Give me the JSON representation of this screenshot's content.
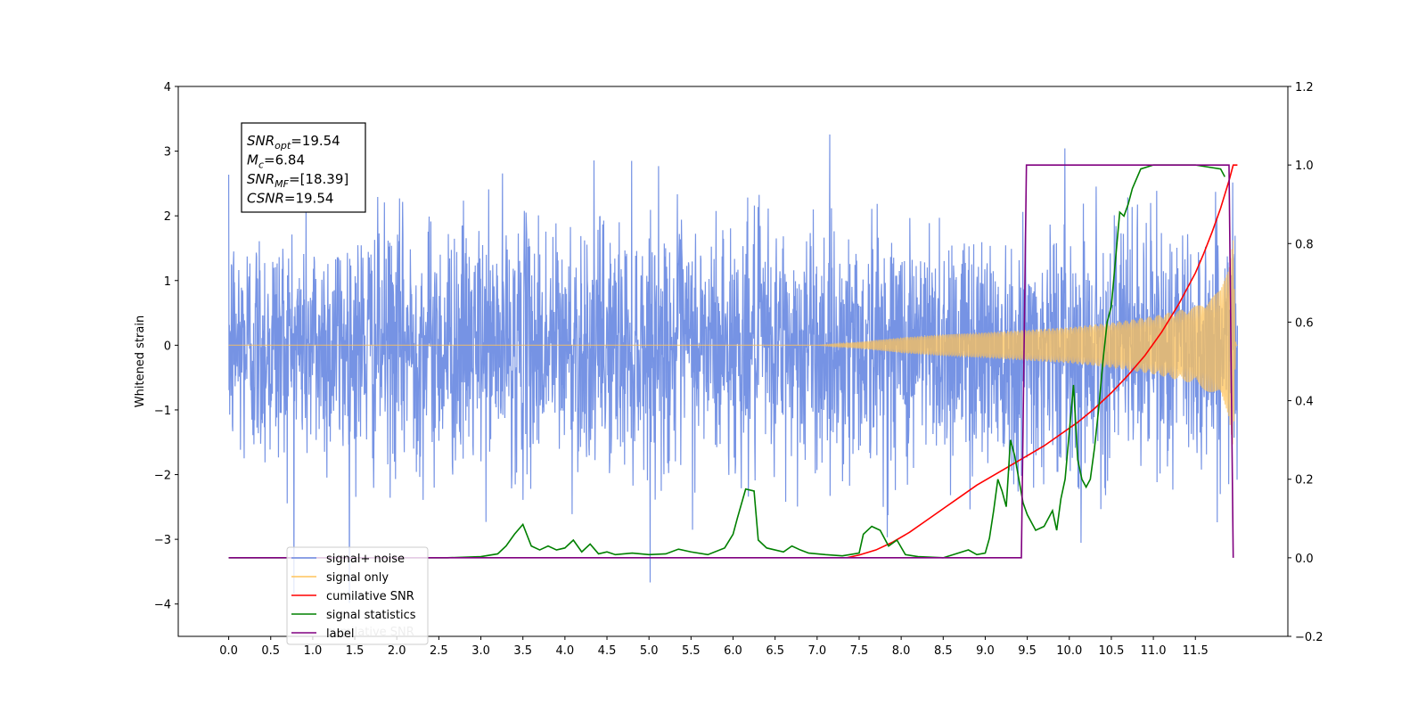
{
  "chart_data": {
    "type": "line",
    "ylabel": "Whitened strain",
    "xlim": [
      -0.6,
      12.6
    ],
    "ylim_left": [
      -4.5,
      4.0
    ],
    "ylim_right": [
      -0.2,
      1.2
    ],
    "x_ticks": [
      0.0,
      0.5,
      1.0,
      1.5,
      2.0,
      2.5,
      3.0,
      3.5,
      4.0,
      4.5,
      5.0,
      5.5,
      6.0,
      6.5,
      7.0,
      7.5,
      8.0,
      8.5,
      9.0,
      9.5,
      10.0,
      10.5,
      11.0,
      11.5
    ],
    "x_tick_labels": [
      "0.0",
      "0.5",
      "1.0",
      "1.5",
      "2.0",
      "2.5",
      "3.0",
      "3.5",
      "4.0",
      "4.5",
      "5.0",
      "5.5",
      "6.0",
      "6.5",
      "7.0",
      "7.5",
      "8.0",
      "8.5",
      "9.0",
      "9.5",
      "10.0",
      "10.5",
      "11.0",
      "11.5"
    ],
    "y_left_ticks": [
      4,
      3,
      2,
      1,
      0,
      -1,
      -2,
      -3,
      -4
    ],
    "y_left_tick_labels": [
      "4",
      "3",
      "2",
      "1",
      "0",
      "−1",
      "−2",
      "−3",
      "−4"
    ],
    "y_right_ticks": [
      1.2,
      1.0,
      0.8,
      0.6,
      0.4,
      0.2,
      0.0,
      -0.2
    ],
    "y_right_tick_labels": [
      "1.2",
      "1.0",
      "0.8",
      "0.6",
      "0.4",
      "0.2",
      "0.0",
      "−0.2"
    ],
    "annotation": {
      "lines": [
        {
          "base": "SNR",
          "sub": "opt",
          "value": "=19.54"
        },
        {
          "base": "M",
          "sub": "c",
          "value": "=6.84"
        },
        {
          "base": "SNR",
          "sub": "MF",
          "value": "=[18.39]"
        },
        {
          "base": "CSNR",
          "sub": "",
          "value": "=19.54"
        }
      ]
    },
    "legend": {
      "placement": "lower-left",
      "ghost_text": "cumilative SNR",
      "entries": [
        {
          "label": "signal+ noise",
          "color": "#6f8de3"
        },
        {
          "label": "signal only",
          "color": "#ffc35a"
        },
        {
          "label": "cumilative SNR",
          "color": "#ff0000"
        },
        {
          "label": "signal statistics",
          "color": "#008000"
        },
        {
          "label": "label",
          "color": "#800080"
        }
      ]
    },
    "series": [
      {
        "id": "signal_noise",
        "axis": "left",
        "color": "#6f8de3",
        "noise_sigma": 0.95,
        "x_range": [
          0.0,
          12.0
        ],
        "samples": 3000
      },
      {
        "id": "signal_only",
        "axis": "left",
        "color": "#ffc35a",
        "envelope": [
          [
            0.0,
            0.0
          ],
          [
            7.0,
            0.0
          ],
          [
            7.5,
            0.05
          ],
          [
            8.0,
            0.12
          ],
          [
            8.5,
            0.17
          ],
          [
            9.0,
            0.2
          ],
          [
            9.5,
            0.24
          ],
          [
            10.0,
            0.28
          ],
          [
            10.5,
            0.35
          ],
          [
            11.0,
            0.45
          ],
          [
            11.5,
            0.6
          ],
          [
            11.8,
            0.85
          ],
          [
            11.9,
            1.2
          ],
          [
            11.95,
            1.7
          ],
          [
            11.98,
            0.0
          ],
          [
            12.0,
            0.0
          ]
        ]
      },
      {
        "id": "cumulative_snr",
        "axis": "right",
        "color": "#ff0000",
        "x": [
          7.35,
          7.5,
          7.7,
          7.9,
          8.1,
          8.3,
          8.5,
          8.7,
          8.9,
          9.1,
          9.3,
          9.5,
          9.7,
          9.9,
          10.1,
          10.3,
          10.5,
          10.7,
          10.9,
          11.1,
          11.3,
          11.5,
          11.6,
          11.7,
          11.8,
          11.85,
          11.9,
          11.95,
          12.0
        ],
        "y": [
          0.0,
          0.007,
          0.02,
          0.04,
          0.065,
          0.095,
          0.125,
          0.155,
          0.185,
          0.21,
          0.235,
          0.26,
          0.285,
          0.315,
          0.345,
          0.38,
          0.42,
          0.465,
          0.515,
          0.575,
          0.645,
          0.725,
          0.775,
          0.83,
          0.89,
          0.925,
          0.96,
          1.0,
          1.0
        ]
      },
      {
        "id": "signal_statistics",
        "axis": "right",
        "color": "#008000",
        "x": [
          0.0,
          1.0,
          2.0,
          2.6,
          3.0,
          3.2,
          3.3,
          3.4,
          3.5,
          3.6,
          3.7,
          3.8,
          3.9,
          4.0,
          4.1,
          4.2,
          4.3,
          4.4,
          4.5,
          4.6,
          4.8,
          5.0,
          5.2,
          5.35,
          5.5,
          5.7,
          5.9,
          6.0,
          6.05,
          6.15,
          6.25,
          6.3,
          6.4,
          6.6,
          6.7,
          6.8,
          6.9,
          7.0,
          7.1,
          7.3,
          7.5,
          7.55,
          7.65,
          7.75,
          7.85,
          7.95,
          8.05,
          8.2,
          8.5,
          8.8,
          8.9,
          9.0,
          9.05,
          9.1,
          9.15,
          9.2,
          9.25,
          9.3,
          9.35,
          9.4,
          9.45,
          9.5,
          9.6,
          9.7,
          9.8,
          9.85,
          9.9,
          9.95,
          10.0,
          10.05,
          10.1,
          10.15,
          10.2,
          10.25,
          10.3,
          10.35,
          10.4,
          10.45,
          10.5,
          10.6,
          10.65,
          10.7,
          10.75,
          10.85,
          11.0,
          11.5,
          11.8,
          11.85
        ],
        "y": [
          0.0,
          0.0,
          0.0,
          0.0,
          0.003,
          0.01,
          0.03,
          0.06,
          0.085,
          0.03,
          0.02,
          0.03,
          0.02,
          0.025,
          0.045,
          0.015,
          0.035,
          0.01,
          0.015,
          0.008,
          0.012,
          0.008,
          0.01,
          0.022,
          0.015,
          0.008,
          0.025,
          0.06,
          0.1,
          0.175,
          0.17,
          0.045,
          0.025,
          0.015,
          0.03,
          0.02,
          0.012,
          0.01,
          0.008,
          0.005,
          0.012,
          0.06,
          0.08,
          0.07,
          0.03,
          0.045,
          0.008,
          0.003,
          0.0,
          0.02,
          0.008,
          0.012,
          0.05,
          0.12,
          0.2,
          0.17,
          0.13,
          0.3,
          0.26,
          0.2,
          0.14,
          0.11,
          0.07,
          0.08,
          0.12,
          0.07,
          0.15,
          0.2,
          0.32,
          0.44,
          0.25,
          0.2,
          0.18,
          0.2,
          0.28,
          0.38,
          0.5,
          0.6,
          0.64,
          0.88,
          0.87,
          0.9,
          0.94,
          0.99,
          1.0,
          1.0,
          0.99,
          0.97
        ]
      },
      {
        "id": "label",
        "axis": "right",
        "color": "#800080",
        "x": [
          0.0,
          9.43,
          9.49,
          11.9,
          11.95
        ],
        "y": [
          0.0,
          0.0,
          1.0,
          1.0,
          0.0
        ]
      }
    ]
  }
}
